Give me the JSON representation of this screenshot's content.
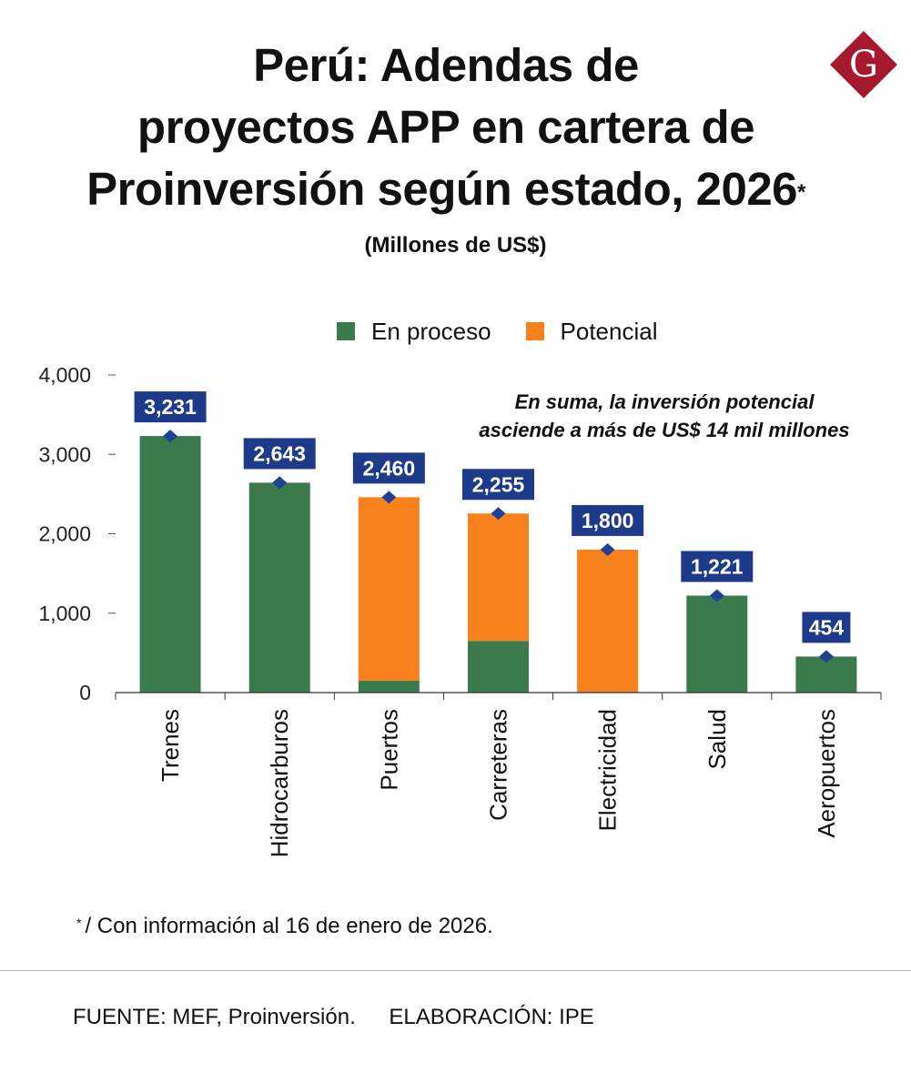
{
  "title": {
    "line1": "Perú: Adendas de",
    "line2": "proyectos APP en cartera de",
    "line3": "Proinversión según estado, 2026",
    "asterisk": "*"
  },
  "subtitle": "(Millones de US$)",
  "logo": {
    "letter": "G",
    "color": "#a6192e"
  },
  "legend": [
    {
      "label": "En proceso",
      "color": "#3a7a4c"
    },
    {
      "label": "Potencial",
      "color": "#f7811d"
    }
  ],
  "annotation": {
    "line1": "En suma, la inversión potencial",
    "line2": "asciende a más de US$ 14 mil millones"
  },
  "chart_data": {
    "type": "bar",
    "stacked": true,
    "title": "Perú: Adendas de proyectos APP en cartera de Proinversión según estado, 2026*",
    "ylabel": "Millones de US$",
    "ylim": [
      0,
      4000
    ],
    "yticks": [
      0,
      1000,
      2000,
      3000,
      4000
    ],
    "ytick_labels": [
      "0",
      "1,000",
      "2,000",
      "3,000",
      "4,000"
    ],
    "categories": [
      "Trenes",
      "Hidrocarburos",
      "Puertos",
      "Carreteras",
      "Electricidad",
      "Salud",
      "Aeropuertos"
    ],
    "series": [
      {
        "name": "En proceso",
        "color": "#3a7a4c",
        "values": [
          3231,
          2643,
          150,
          650,
          0,
          1221,
          454
        ]
      },
      {
        "name": "Potencial",
        "color": "#f7811d",
        "values": [
          0,
          0,
          2310,
          1605,
          1800,
          0,
          0
        ]
      }
    ],
    "totals": [
      3231,
      2643,
      2460,
      2255,
      1800,
      1221,
      454
    ],
    "total_labels": [
      "3,231",
      "2,643",
      "2,460",
      "2,255",
      "1,800",
      "1,221",
      "454"
    ],
    "label_color": "#1e3a8a",
    "marker_color": "#1f4196"
  },
  "footnote": {
    "mark": "*",
    "text": "/ Con información al 16 de enero de 2026."
  },
  "source": {
    "fuente": "FUENTE: MEF, Proinversión.",
    "elaboracion": "ELABORACIÓN: IPE"
  }
}
